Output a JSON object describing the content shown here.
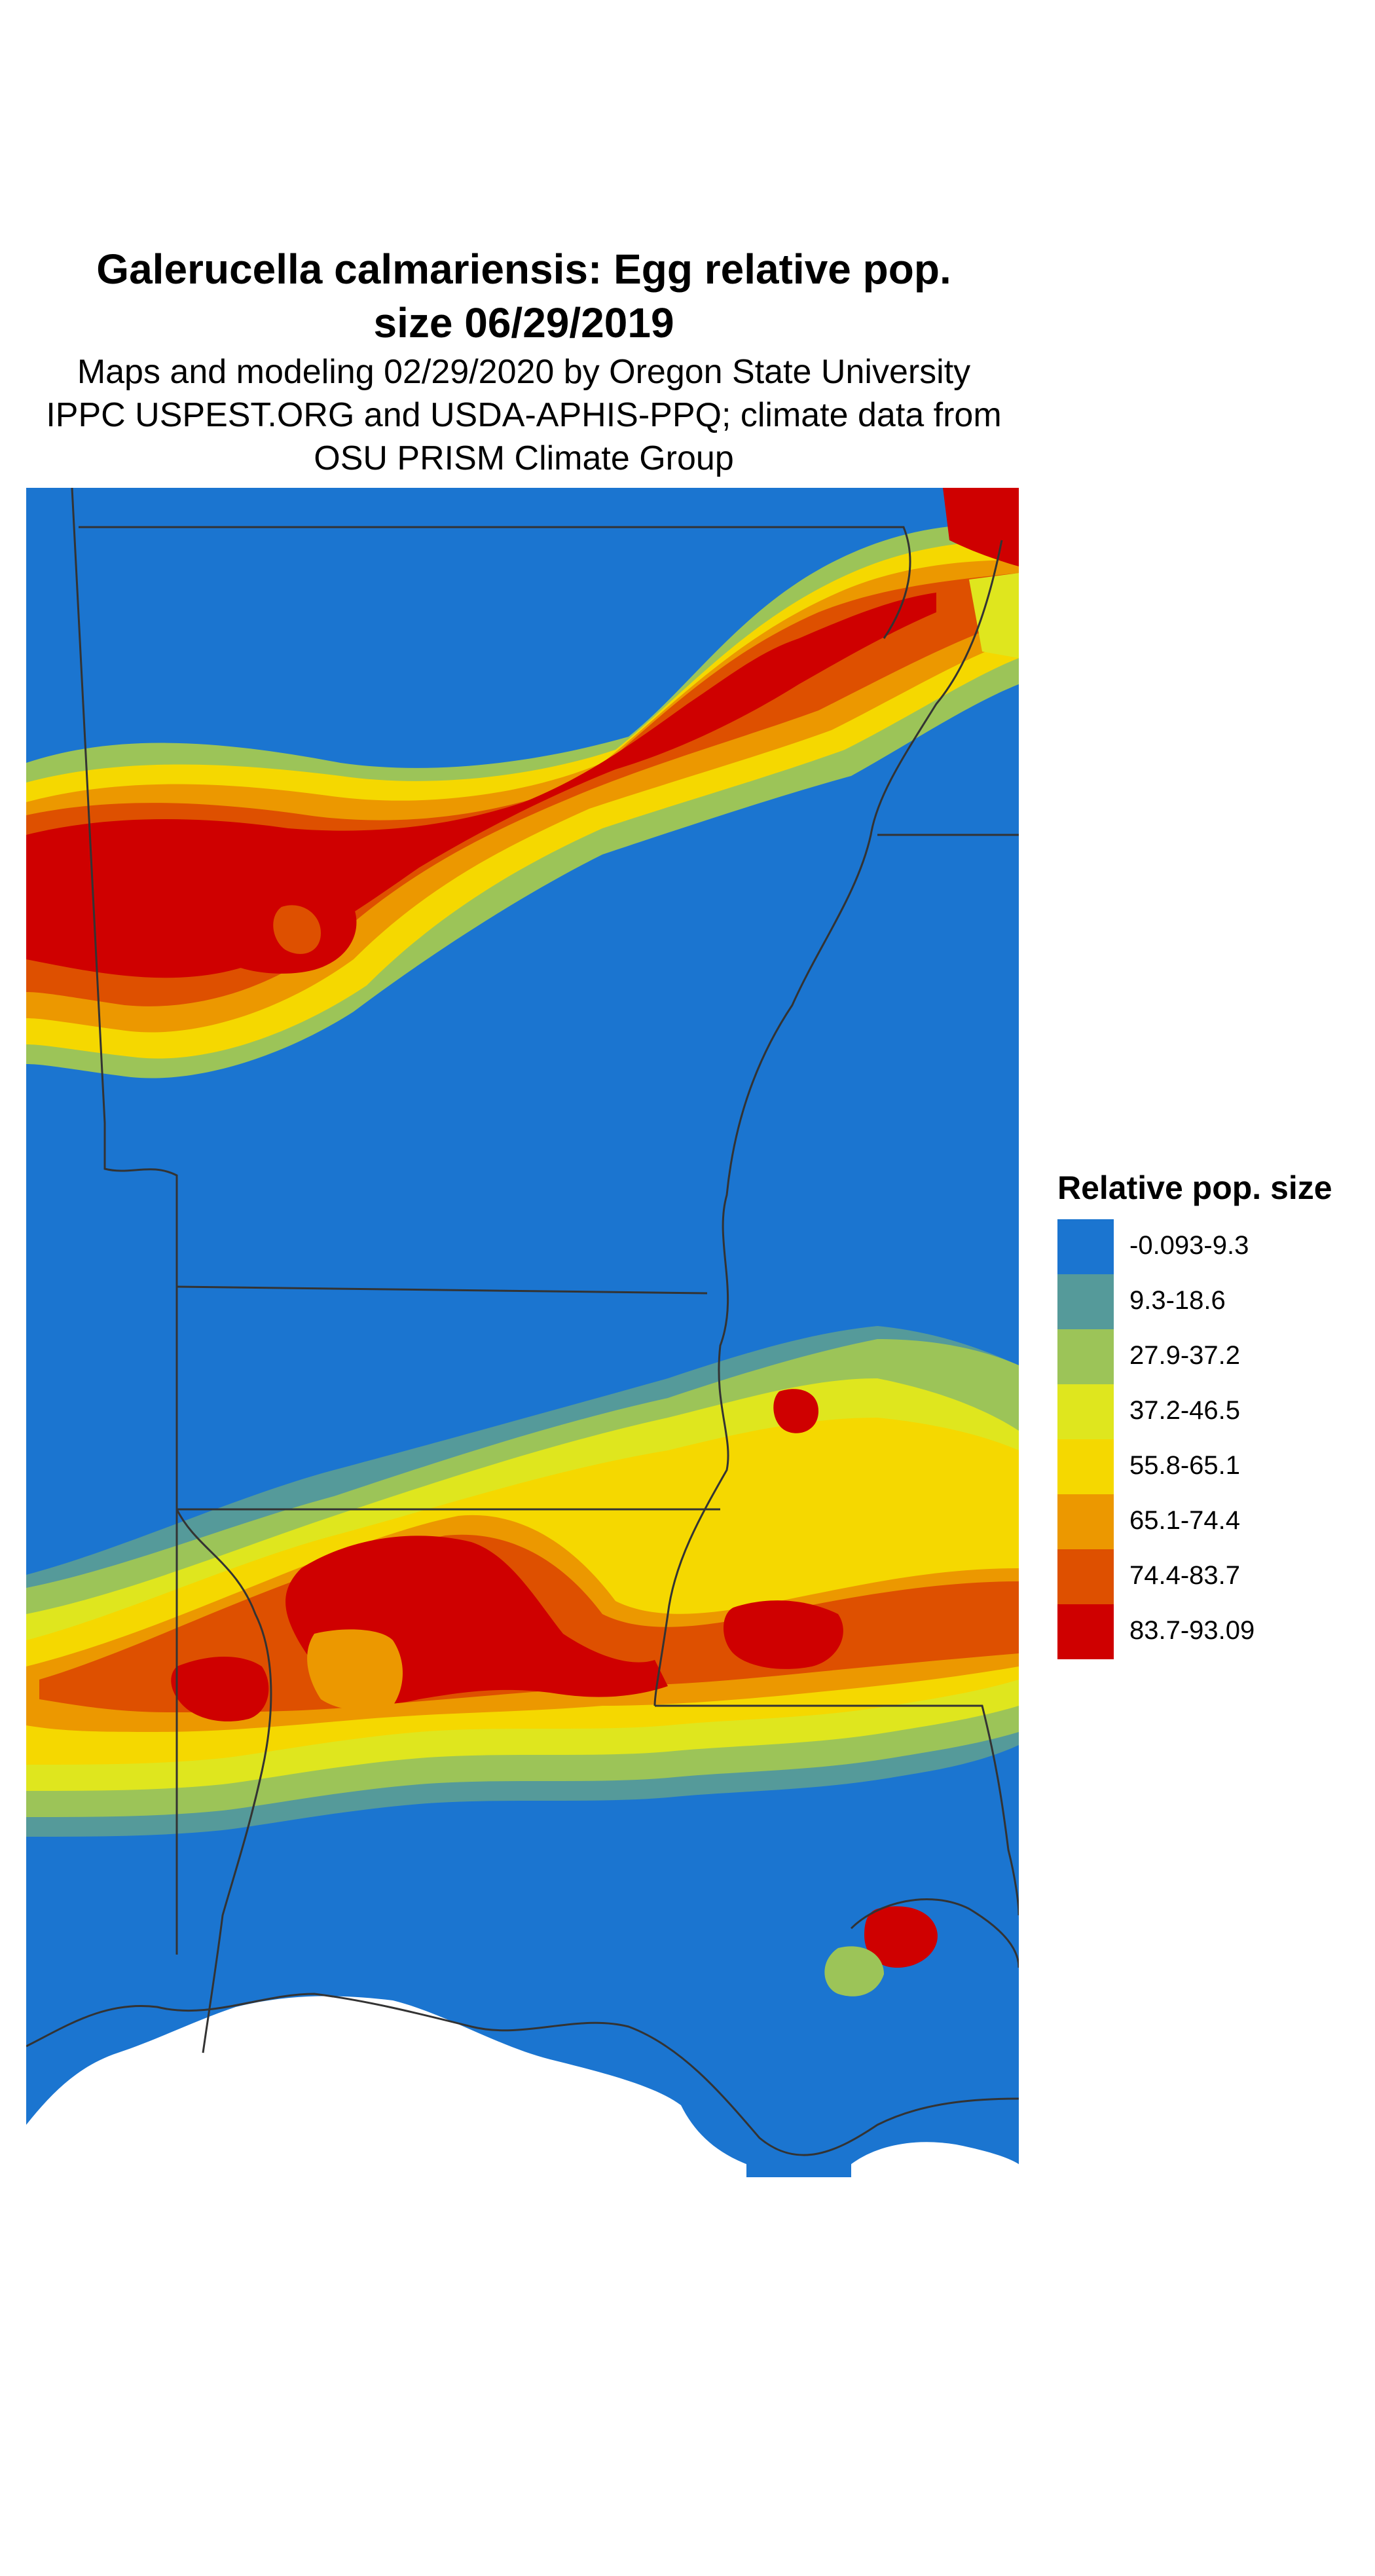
{
  "title": {
    "line1": "Galerucella calmariensis: Egg relative pop.",
    "line2": "size 06/29/2019"
  },
  "subtitle": {
    "line1": "Maps and modeling 02/29/2020 by Oregon State University",
    "line2": "IPPC USPEST.ORG and USDA-APHIS-PPQ; climate data from",
    "line3": "OSU PRISM Climate Group"
  },
  "legend": {
    "title": "Relative pop. size",
    "items": [
      {
        "label": "-0.093-9.3",
        "color": "#1b75d0"
      },
      {
        "label": "9.3-18.6",
        "color": "#559a9a"
      },
      {
        "label": "27.9-37.2",
        "color": "#9cc458"
      },
      {
        "label": "37.2-46.5",
        "color": "#dfe61e"
      },
      {
        "label": "55.8-65.1",
        "color": "#f5d800"
      },
      {
        "label": "65.1-74.4",
        "color": "#ec9800"
      },
      {
        "label": "74.4-83.7",
        "color": "#de5000"
      },
      {
        "label": "83.7-93.09",
        "color": "#cf0000"
      }
    ]
  },
  "map": {
    "background_color": "#1b75d0",
    "boundary_color": "#333333"
  }
}
